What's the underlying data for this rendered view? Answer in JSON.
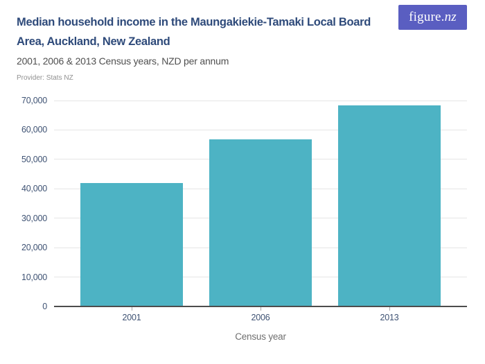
{
  "header": {
    "title": "Median household income in the Maungakiekie-Tamaki Local Board Area, Auckland, New Zealand",
    "subtitle": "2001, 2006 & 2013 Census years, NZD per annum",
    "provider": "Provider: Stats NZ"
  },
  "logo": {
    "text_main": "figure.",
    "text_suffix": "nz"
  },
  "chart_data": {
    "type": "bar",
    "title": "Median household income in the Maungakiekie-Tamaki Local Board Area, Auckland, New Zealand",
    "subtitle": "2001, 2006 & 2013 Census years, NZD per annum",
    "categories": [
      "2001",
      "2006",
      "2013"
    ],
    "values": [
      41900,
      56900,
      68300
    ],
    "xlabel": "Census year",
    "ylabel": "",
    "ylim": [
      0,
      70000
    ],
    "ytick_interval": 10000,
    "yticks": [
      0,
      10000,
      20000,
      30000,
      40000,
      50000,
      60000,
      70000
    ],
    "ytick_labels": [
      "0",
      "10,000",
      "20,000",
      "30,000",
      "40,000",
      "50,000",
      "60,000",
      "70,000"
    ],
    "grid": true,
    "legend": "none",
    "bar_color": "#4db3c4"
  },
  "colors": {
    "title": "#2e4a7a",
    "subtitle": "#4f4f4f",
    "provider": "#909090",
    "axis_tick_label": "#3e5273",
    "xaxis_title": "#6f6f6f",
    "gridline": "#e5e5e5",
    "axis_line": "#4d4d4d",
    "bar": "#4db3c4",
    "logo_bg": "#5a5ec1",
    "logo_text": "#ffffff"
  }
}
